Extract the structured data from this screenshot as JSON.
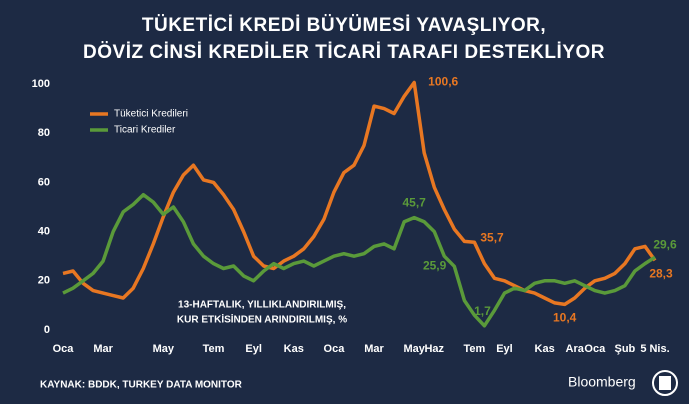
{
  "chart_data": {
    "type": "line",
    "title": [
      "TÜKETİCİ KREDİ BÜYÜMESİ YAVAŞLIYOR,",
      "DÖVİZ CİNSİ KREDİLER TİCARİ TARAFI DESTEKLİYOR"
    ],
    "annotation": [
      "13-HAFTALIK, YILLIKLANDIRILMIŞ,",
      "KUR ETKİSİNDEN ARINDIRILMIŞ, %"
    ],
    "source": "KAYNAK: BDDK, TURKEY DATA MONITOR",
    "logo": "Bloomberg",
    "categories": [
      "Oca",
      null,
      null,
      null,
      "Mar",
      null,
      null,
      null,
      null,
      null,
      "May",
      null,
      null,
      null,
      null,
      "Tem",
      null,
      null,
      null,
      "Eyl",
      null,
      null,
      null,
      "Kas",
      null,
      null,
      null,
      "Oca",
      null,
      null,
      null,
      "Mar",
      null,
      null,
      null,
      "May",
      null,
      "Haz",
      null,
      null,
      null,
      "Tem",
      null,
      null,
      "Eyl",
      null,
      null,
      null,
      "Kas",
      null,
      null,
      "Ara",
      null,
      "Oca",
      null,
      null,
      "Şub",
      null,
      null,
      "5 Nis."
    ],
    "series": [
      {
        "name": "Tüketici Kredileri",
        "color": "#e87722",
        "values": [
          23,
          24,
          19,
          16,
          15,
          14,
          13,
          17,
          25,
          35,
          46,
          56,
          63,
          67,
          61,
          60,
          55,
          49,
          40,
          30,
          26,
          25,
          28,
          30,
          33,
          38,
          45,
          56,
          64,
          67,
          75,
          91,
          90,
          88,
          95,
          100.6,
          72,
          58,
          49,
          41,
          36,
          35.7,
          27,
          21,
          20,
          18,
          16,
          15,
          13,
          11,
          10.4,
          13,
          17,
          20,
          21,
          23,
          27,
          33,
          34,
          28.3
        ],
        "value_labels": [
          null,
          null,
          null,
          null,
          null,
          null,
          null,
          null,
          null,
          null,
          null,
          null,
          null,
          null,
          null,
          null,
          null,
          null,
          null,
          null,
          null,
          null,
          null,
          null,
          null,
          null,
          null,
          null,
          null,
          null,
          null,
          null,
          null,
          null,
          null,
          "100,6",
          null,
          null,
          null,
          null,
          null,
          "35,7",
          null,
          null,
          null,
          null,
          null,
          null,
          null,
          null,
          "10,4",
          null,
          null,
          null,
          null,
          null,
          null,
          null,
          null,
          "28,3"
        ]
      },
      {
        "name": "Ticari Krediler",
        "color": "#5a9a3a",
        "values": [
          15,
          17,
          20,
          23,
          28,
          40,
          48,
          51,
          55,
          52,
          47,
          50,
          44,
          35,
          30,
          27,
          25,
          26,
          22,
          20,
          24,
          27,
          25,
          27,
          28,
          26,
          28,
          30,
          31,
          30,
          31,
          34,
          35,
          33,
          44,
          45.7,
          44,
          40,
          30,
          25.9,
          12,
          6,
          1.7,
          8,
          15,
          17,
          16,
          19,
          20,
          20,
          19,
          20,
          18,
          16,
          15,
          16,
          18,
          24,
          27,
          29.6
        ],
        "value_labels": [
          null,
          null,
          null,
          null,
          null,
          null,
          null,
          null,
          null,
          null,
          null,
          null,
          null,
          null,
          null,
          null,
          null,
          null,
          null,
          null,
          null,
          null,
          null,
          null,
          null,
          null,
          null,
          null,
          null,
          null,
          null,
          null,
          null,
          null,
          null,
          "45,7",
          null,
          null,
          null,
          "25,9",
          null,
          null,
          "1,7",
          null,
          null,
          null,
          null,
          null,
          null,
          null,
          null,
          null,
          null,
          null,
          null,
          null,
          null,
          null,
          null,
          "29,6"
        ]
      }
    ],
    "ylim": [
      0,
      100
    ],
    "yticks": [
      0,
      20,
      40,
      60,
      80,
      100
    ],
    "grid": false,
    "legend": "upper left"
  }
}
